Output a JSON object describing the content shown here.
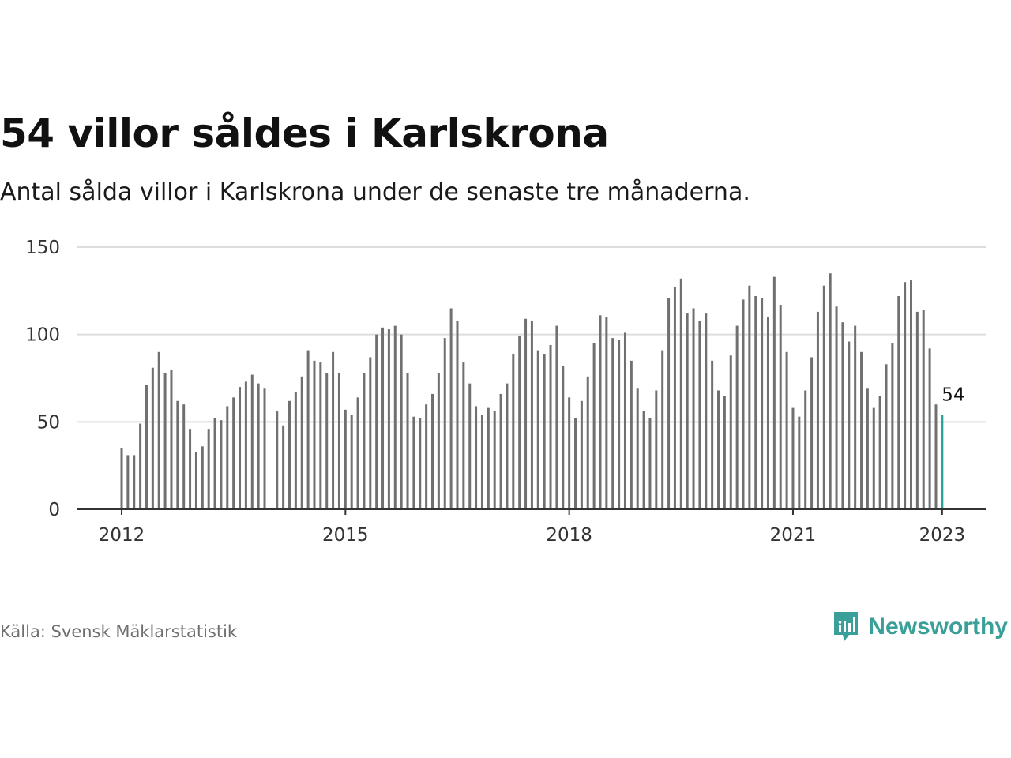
{
  "header": {
    "title": "54 villor såldes i Karlskrona",
    "subtitle": "Antal sålda villor i Karlskrona under de senaste tre månaderna."
  },
  "footer": {
    "source": "Källa: Svensk Mäklarstatistik",
    "brand": "Newsworthy"
  },
  "colors": {
    "bar": "#707070",
    "highlight": "#2aa39b",
    "grid": "#dddddd",
    "axis": "#333333",
    "brand": "#3a9f98"
  },
  "chart_data": {
    "type": "bar",
    "title": "54 villor såldes i Karlskrona",
    "subtitle": "Antal sålda villor i Karlskrona under de senaste tre månaderna.",
    "xlabel": "",
    "ylabel": "",
    "x_ticks": [
      "2012",
      "2015",
      "2018",
      "2021",
      "2023"
    ],
    "y_ticks": [
      0,
      50,
      100,
      150
    ],
    "ylim": [
      0,
      150
    ],
    "grid": "horizontal",
    "start": "2012-01",
    "end": "2023-01",
    "annotation": {
      "label": "54",
      "at": "2023-01"
    },
    "values": [
      35,
      31,
      31,
      49,
      71,
      81,
      90,
      78,
      80,
      62,
      60,
      46,
      33,
      36,
      46,
      52,
      51,
      59,
      64,
      70,
      73,
      77,
      72,
      69,
      null,
      56,
      48,
      62,
      67,
      76,
      91,
      85,
      84,
      78,
      90,
      78,
      57,
      54,
      64,
      78,
      87,
      100,
      104,
      103,
      105,
      100,
      78,
      53,
      52,
      60,
      66,
      78,
      98,
      115,
      108,
      84,
      72,
      59,
      54,
      58,
      56,
      66,
      72,
      89,
      99,
      109,
      108,
      91,
      89,
      94,
      105,
      82,
      64,
      52,
      62,
      76,
      95,
      111,
      110,
      98,
      97,
      101,
      85,
      69,
      56,
      52,
      68,
      91,
      121,
      127,
      132,
      112,
      115,
      108,
      112,
      85,
      68,
      65,
      88,
      105,
      120,
      128,
      122,
      121,
      110,
      133,
      117,
      90,
      58,
      53,
      68,
      87,
      113,
      128,
      135,
      116,
      107,
      96,
      105,
      90,
      69,
      58,
      65,
      83,
      95,
      122,
      130,
      131,
      113,
      114,
      92,
      60,
      54
    ]
  }
}
